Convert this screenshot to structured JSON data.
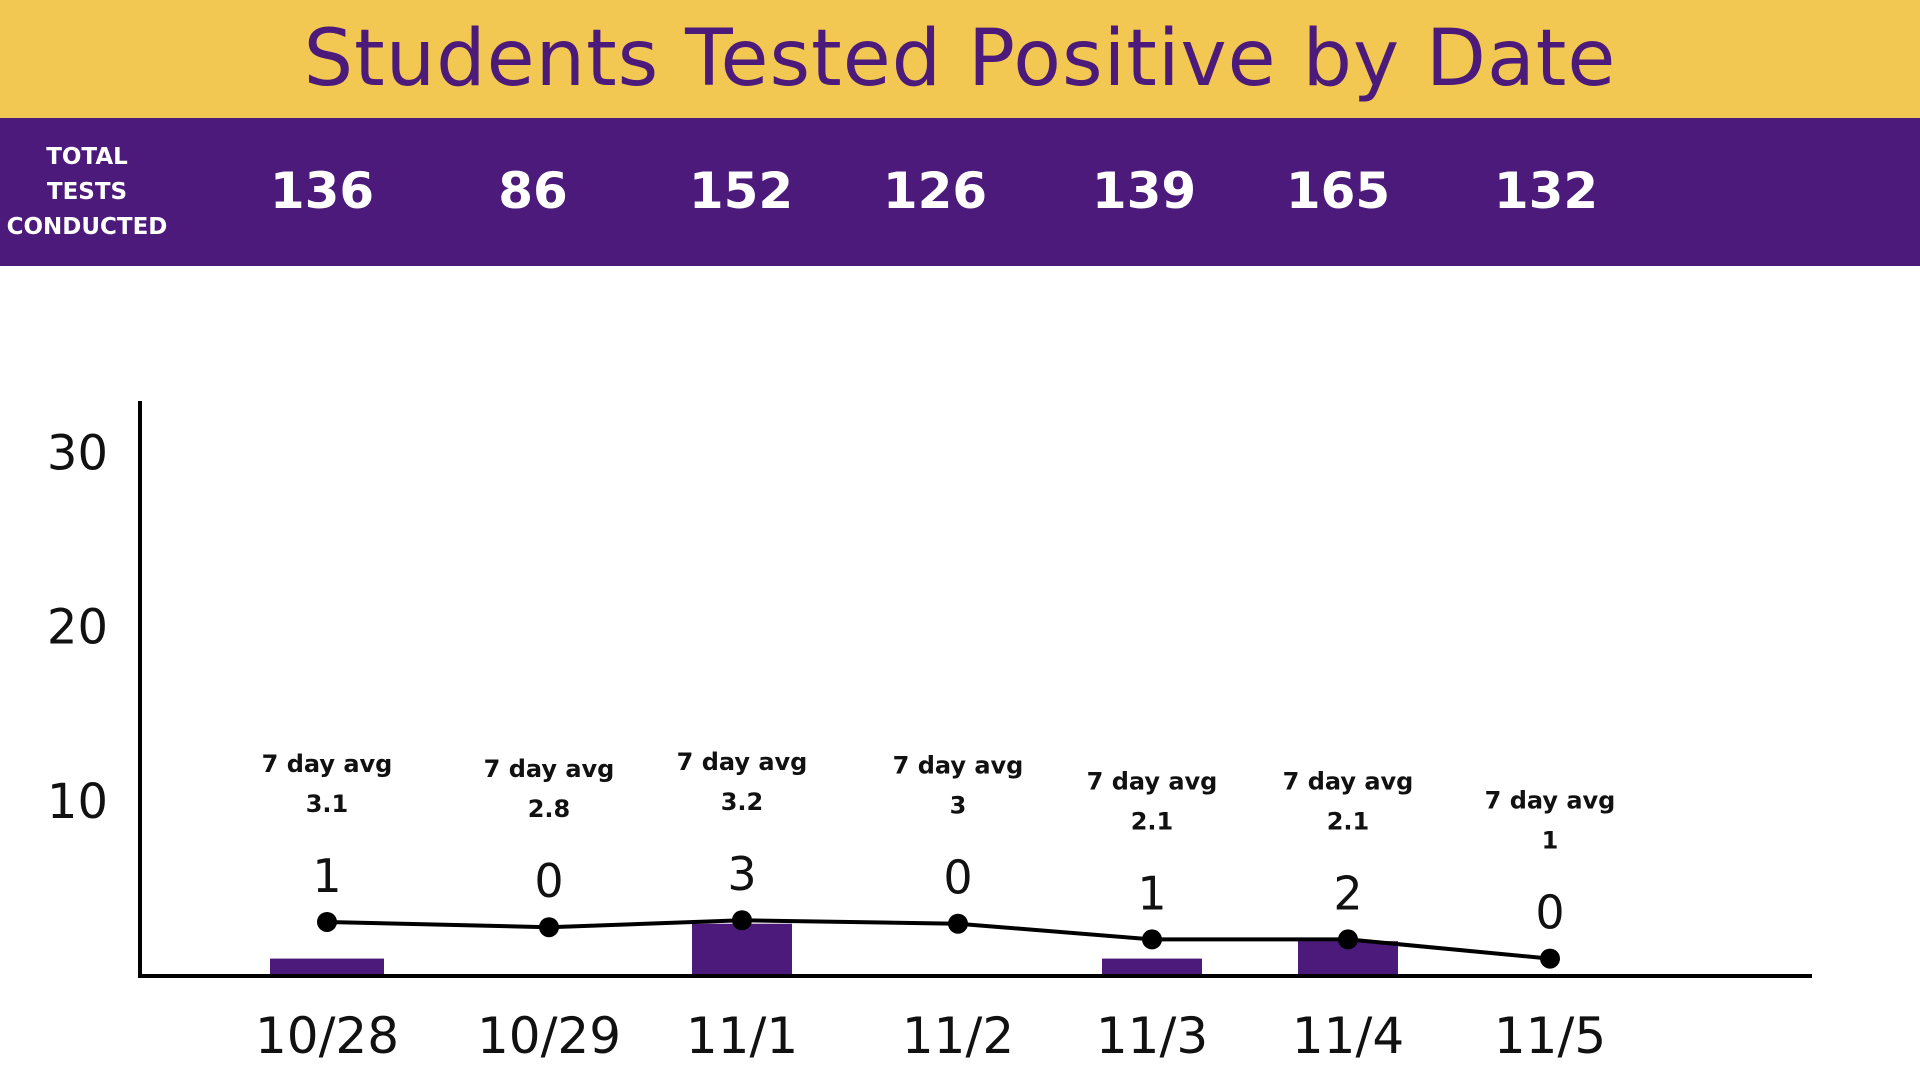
{
  "title": "Students Tested Positive by Date",
  "tests_row": {
    "label_lines": [
      "TOTAL",
      "TESTS",
      "CONDUCTED"
    ]
  },
  "colors": {
    "title_bg": "#f2c752",
    "title_text": "#4b1a7a",
    "band_bg": "#4b1a7a",
    "bar": "#4b1a7a",
    "avg_line": "#000000"
  },
  "chart_data": {
    "type": "bar",
    "title": "Students Tested Positive by Date",
    "categories": [
      "10/28",
      "10/29",
      "11/1",
      "11/2",
      "11/3",
      "11/4",
      "11/5"
    ],
    "series": [
      {
        "values": [
          1,
          0,
          3,
          0,
          1,
          2,
          0
        ]
      },
      {
        "type": "line",
        "values": [
          3.1,
          2.8,
          3.2,
          3,
          2.1,
          2.1,
          1
        ]
      }
    ],
    "total_tests": [
      "136",
      "86",
      "152",
      "126",
      "139",
      "165",
      "132"
    ],
    "avg_label": "7 day avg",
    "avg_values": [
      "3.1",
      "2.8",
      "3.2",
      "3",
      "2.1",
      "2.1",
      "1"
    ],
    "value_labels": [
      "1",
      "0",
      "3",
      "0",
      "1",
      "2",
      "0"
    ],
    "yticks": [
      "10",
      "20",
      "30"
    ],
    "ylim": [
      0,
      33
    ],
    "xlabel": "",
    "ylabel": "",
    "grid": false,
    "legend": "none"
  }
}
